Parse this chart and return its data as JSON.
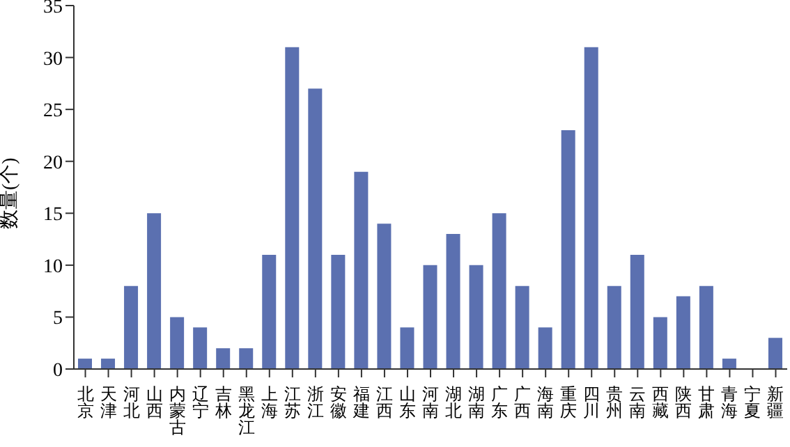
{
  "chart_data": {
    "type": "bar",
    "ylabel": "数量(个)",
    "categories": [
      "北京",
      "天津",
      "河北",
      "山西",
      "内蒙古",
      "辽宁",
      "吉林",
      "黑龙江",
      "上海",
      "江苏",
      "浙江",
      "安徽",
      "福建",
      "江西",
      "山东",
      "河南",
      "湖北",
      "湖南",
      "广东",
      "广西",
      "海南",
      "重庆",
      "四川",
      "贵州",
      "云南",
      "西藏",
      "陕西",
      "甘肃",
      "青海",
      "宁夏",
      "新疆"
    ],
    "values": [
      1,
      1,
      8,
      15,
      5,
      4,
      2,
      2,
      11,
      31,
      27,
      11,
      19,
      14,
      4,
      10,
      13,
      10,
      15,
      8,
      4,
      23,
      31,
      8,
      11,
      5,
      7,
      8,
      1,
      0,
      3
    ],
    "color": "#5b70b0",
    "ylim": [
      0,
      35
    ],
    "yticks": [
      0,
      5,
      10,
      15,
      20,
      25,
      30,
      35
    ],
    "grid": false,
    "legend": false
  }
}
